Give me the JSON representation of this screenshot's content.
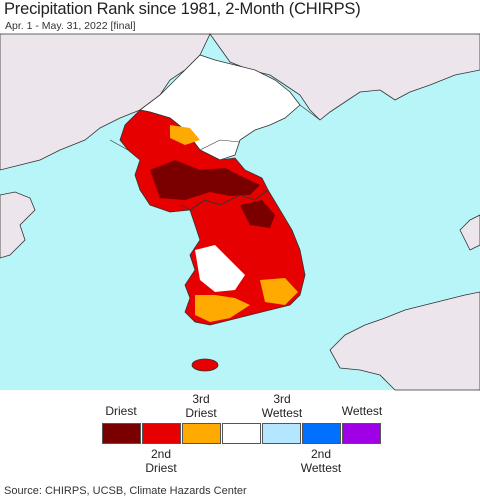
{
  "header": {
    "title": "Precipitation Rank since 1981, 2-Month (CHIRPS)",
    "subtitle": "Apr. 1 - May. 31, 2022 [final]"
  },
  "legend": {
    "top_labels": [
      {
        "line1": "",
        "line2": "Driest"
      },
      {
        "line1": "3rd",
        "line2": "Driest"
      },
      {
        "line1": "3rd",
        "line2": "Wettest"
      },
      {
        "line1": "",
        "line2": "Wettest"
      }
    ],
    "bottom_labels": [
      {
        "line1": "2nd",
        "line2": "Driest"
      },
      {
        "line1": "2nd",
        "line2": "Wettest"
      }
    ],
    "colors": [
      "#7a0000",
      "#e60000",
      "#ffaa00",
      "#ffffff",
      "#b4e6ff",
      "#0070ff",
      "#a000e6"
    ]
  },
  "colors": {
    "sea": "#b8f5f8",
    "land_other": "#ece6ec",
    "border": "#333333"
  },
  "source": "Source: CHIRPS, UCSB, Climate Hazards Center"
}
